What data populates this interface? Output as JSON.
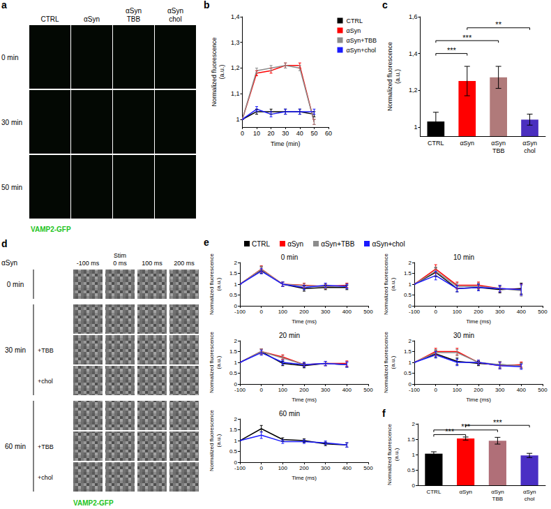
{
  "image_panels": [
    {
      "panel": "a",
      "columns": [
        "CTRL",
        "αSyn",
        "αSyn\nTBB",
        "αSyn\nchol"
      ],
      "rows": [
        "0 min",
        "30 min",
        "50 min"
      ],
      "caption": "VAMP2-GFP"
    },
    {
      "panel": "d",
      "corner": "αSyn",
      "columns": [
        "-100 ms",
        "Stim\n0 ms",
        "100 ms",
        "200 ms"
      ],
      "row_groups": [
        {
          "label": "0 min",
          "rows": [
            null
          ]
        },
        {
          "label": "30 min",
          "rows": [
            null,
            "+TBB",
            "+chol"
          ]
        },
        {
          "label": "60 min",
          "rows": [
            null,
            "+TBB",
            "+chol"
          ]
        }
      ],
      "caption": "VAMP2-GFP"
    }
  ],
  "e_legend": {
    "panel": "e",
    "series": [
      {
        "name": "CTRL",
        "color": "#000000"
      },
      {
        "name": "αSyn",
        "color": "#ff0000"
      },
      {
        "name": "αSyn+TBB",
        "color": "#8c8c8c"
      },
      {
        "name": "αSyn+chol",
        "color": "#1a1aff"
      }
    ]
  },
  "chart_data": [
    {
      "panel": "b",
      "type": "line",
      "xlabel": "Time (min)",
      "ylabel": "Normalized fluorescence\n(a.u.)",
      "legend": "right",
      "x": [
        0,
        10,
        20,
        30,
        40,
        50
      ],
      "xlim": [
        0,
        60
      ],
      "xticks": [
        0,
        10,
        20,
        30,
        40,
        50,
        60
      ],
      "ylim": [
        0.97,
        1.4
      ],
      "yticks": [
        1,
        {
          "value": 1.1,
          "label": "1,1"
        },
        {
          "value": 1.2,
          "label": "1,2"
        },
        {
          "value": 1.3,
          "label": "1,3"
        },
        {
          "value": 1.4,
          "label": "1,4"
        }
      ],
      "series": [
        {
          "name": "CTRL",
          "color": "#000000",
          "values": [
            1,
            1.03,
            1.03,
            1.03,
            1.03,
            1.02
          ],
          "errors": [
            0,
            0.01,
            0.01,
            0.01,
            0.01,
            0.01
          ]
        },
        {
          "name": "αSyn",
          "color": "#ff0000",
          "values": [
            1,
            1.18,
            1.19,
            1.21,
            1.21,
            0.99
          ],
          "errors": [
            0,
            0.01,
            0.01,
            0.01,
            0.01,
            0.01
          ]
        },
        {
          "name": "αSyn+TBB",
          "color": "#8c8c8c",
          "values": [
            1,
            1.19,
            1.2,
            1.21,
            1.2,
            0.99
          ],
          "errors": [
            0,
            0.01,
            0.01,
            0.01,
            0.01,
            0.01
          ]
        },
        {
          "name": "αSyn+chol",
          "color": "#1a1aff",
          "values": [
            1,
            1.04,
            1.02,
            1.03,
            1.03,
            1.03
          ],
          "errors": [
            0,
            0.01,
            0.01,
            0.01,
            0.01,
            0.01
          ]
        }
      ]
    },
    {
      "panel": "c",
      "type": "bar",
      "ylabel": "Normalized fluorescence\n(a.u.)",
      "categories": [
        "CTRL",
        "αSyn",
        "αSyn\nTBB",
        "αSyn\nchol"
      ],
      "values": [
        1.03,
        1.25,
        1.27,
        1.04
      ],
      "errors": [
        0.05,
        0.08,
        0.06,
        0.03
      ],
      "colors": [
        "#000000",
        "#ff0000",
        "#b07a7a",
        "#4b2fbf"
      ],
      "ylim": [
        0.95,
        1.6
      ],
      "yticks": [
        1,
        {
          "value": 1.2,
          "label": "1,2"
        },
        {
          "value": 1.4,
          "label": "1,4"
        },
        {
          "value": 1.6,
          "label": "1,6"
        }
      ],
      "significance": [
        {
          "from": 0,
          "to": 1,
          "y": 1.4,
          "label": "***"
        },
        {
          "from": 0,
          "to": 2,
          "y": 1.47,
          "label": "***"
        },
        {
          "from": 1,
          "to": 3,
          "y": 1.54,
          "label": "**"
        }
      ]
    },
    {
      "type": "line",
      "title": "0 min",
      "xlabel": "Time (ms)",
      "ylabel": "Normalized fluorescence\n(a.u.)",
      "x": [
        -100,
        0,
        100,
        200,
        300,
        400
      ],
      "xlim": [
        -100,
        500
      ],
      "xticks": [
        -100,
        0,
        100,
        200,
        300,
        400,
        500
      ],
      "ylim": [
        0,
        2
      ],
      "yticks": [
        0,
        0.5,
        1,
        1.5,
        2
      ],
      "series": [
        {
          "name": "CTRL",
          "color": "#000000",
          "values": [
            1,
            1.65,
            1.0,
            0.8,
            0.85,
            0.85
          ],
          "errors": [
            0,
            0.15,
            0.1,
            0.12,
            0.1,
            0.1
          ]
        },
        {
          "name": "αSyn",
          "color": "#ff0000",
          "values": [
            1,
            1.7,
            1.0,
            0.95,
            0.9,
            0.95
          ],
          "errors": [
            0,
            0.15,
            0.1,
            0.1,
            0.1,
            0.1
          ]
        },
        {
          "name": "αSyn+TBB",
          "color": "#8c8c8c",
          "values": [
            1,
            1.68,
            1.0,
            0.93,
            0.9,
            0.92
          ],
          "errors": [
            0,
            0.15,
            0.1,
            0.1,
            0.1,
            0.1
          ]
        },
        {
          "name": "αSyn+chol",
          "color": "#1a1aff",
          "values": [
            1,
            1.6,
            1.0,
            0.85,
            0.95,
            0.9
          ],
          "errors": [
            0,
            0.12,
            0.1,
            0.1,
            0.1,
            0.1
          ]
        }
      ]
    },
    {
      "type": "line",
      "title": "10 min",
      "xlabel": "Time (ms)",
      "ylabel": "Normalized fluorescence\n(a.u.)",
      "x": [
        -100,
        0,
        100,
        200,
        300,
        400
      ],
      "xlim": [
        -100,
        500
      ],
      "xticks": [
        -100,
        0,
        100,
        200,
        300,
        400,
        500
      ],
      "ylim": [
        0,
        2
      ],
      "yticks": [
        0,
        0.5,
        1,
        1.5,
        2
      ],
      "series": [
        {
          "name": "CTRL",
          "color": "#000000",
          "values": [
            1,
            1.55,
            0.8,
            0.85,
            0.75,
            0.8
          ],
          "errors": [
            0,
            0.2,
            0.15,
            0.15,
            0.15,
            0.25
          ]
        },
        {
          "name": "αSyn",
          "color": "#ff0000",
          "values": [
            1,
            1.7,
            0.95,
            0.95,
            0.8,
            0.75
          ],
          "errors": [
            0,
            0.2,
            0.15,
            0.15,
            0.15,
            0.25
          ]
        },
        {
          "name": "αSyn+TBB",
          "color": "#8c8c8c",
          "values": [
            1,
            1.6,
            0.9,
            0.9,
            0.8,
            0.7
          ],
          "errors": [
            0,
            0.2,
            0.15,
            0.15,
            0.15,
            0.25
          ]
        },
        {
          "name": "αSyn+chol",
          "color": "#1a1aff",
          "values": [
            1,
            1.4,
            0.8,
            0.85,
            0.8,
            0.75
          ],
          "errors": [
            0,
            0.2,
            0.15,
            0.15,
            0.15,
            0.25
          ]
        }
      ]
    },
    {
      "type": "line",
      "title": "20 min",
      "xlabel": "Time (ms)",
      "ylabel": "Normalized fluorescence\n(a.u.)",
      "x": [
        -100,
        0,
        100,
        200,
        300,
        400
      ],
      "xlim": [
        -100,
        500
      ],
      "xticks": [
        -100,
        0,
        100,
        200,
        300,
        400,
        500
      ],
      "ylim": [
        0,
        2
      ],
      "yticks": [
        0,
        0.5,
        1,
        1.5,
        2
      ],
      "series": [
        {
          "name": "CTRL",
          "color": "#000000",
          "values": [
            1,
            1.5,
            0.95,
            0.85,
            0.95,
            0.9
          ],
          "errors": [
            0,
            0.12,
            0.1,
            0.1,
            0.1,
            0.12
          ]
        },
        {
          "name": "αSyn",
          "color": "#ff0000",
          "values": [
            1,
            1.5,
            1.25,
            0.9,
            0.95,
            0.95
          ],
          "errors": [
            0,
            0.12,
            0.1,
            0.1,
            0.1,
            0.12
          ]
        },
        {
          "name": "αSyn+TBB",
          "color": "#8c8c8c",
          "values": [
            1,
            1.5,
            1.2,
            0.9,
            0.95,
            0.9
          ],
          "errors": [
            0,
            0.12,
            0.1,
            0.1,
            0.1,
            0.12
          ]
        },
        {
          "name": "αSyn+chol",
          "color": "#1a1aff",
          "values": [
            1,
            1.45,
            1.0,
            0.9,
            0.95,
            0.9
          ],
          "errors": [
            0,
            0.12,
            0.1,
            0.1,
            0.1,
            0.12
          ]
        }
      ]
    },
    {
      "type": "line",
      "title": "30 min",
      "xlabel": "Time (ms)",
      "ylabel": "Normalized fluorescence\n(a.u.)",
      "x": [
        -100,
        0,
        100,
        200,
        300,
        400
      ],
      "xlim": [
        -100,
        500
      ],
      "xticks": [
        -100,
        0,
        100,
        200,
        300,
        400,
        500
      ],
      "ylim": [
        0,
        2
      ],
      "yticks": [
        0,
        0.5,
        1,
        1.5,
        2
      ],
      "series": [
        {
          "name": "CTRL",
          "color": "#000000",
          "values": [
            1,
            1.4,
            1.05,
            0.95,
            0.9,
            0.85
          ],
          "errors": [
            0,
            0.15,
            0.15,
            0.1,
            0.15,
            0.12
          ]
        },
        {
          "name": "αSyn",
          "color": "#ff0000",
          "values": [
            1,
            1.5,
            1.5,
            1.0,
            0.85,
            0.9
          ],
          "errors": [
            0,
            0.15,
            0.15,
            0.1,
            0.15,
            0.12
          ]
        },
        {
          "name": "αSyn+TBB",
          "color": "#8c8c8c",
          "values": [
            1,
            1.45,
            1.45,
            1.0,
            0.9,
            0.85
          ],
          "errors": [
            0,
            0.15,
            0.15,
            0.1,
            0.15,
            0.12
          ]
        },
        {
          "name": "αSyn+chol",
          "color": "#1a1aff",
          "values": [
            1,
            1.35,
            1.0,
            1.0,
            0.85,
            0.8
          ],
          "errors": [
            0,
            0.15,
            0.15,
            0.1,
            0.15,
            0.12
          ]
        }
      ]
    },
    {
      "type": "line",
      "title": "60 min",
      "xlabel": "Time (ms)",
      "ylabel": "Normalized fluorescence\n(a.u.)",
      "x": [
        -100,
        0,
        100,
        200,
        300,
        400
      ],
      "xlim": [
        -100,
        500
      ],
      "xticks": [
        -100,
        0,
        100,
        200,
        300,
        400,
        500
      ],
      "ylim": [
        0,
        2
      ],
      "yticks": [
        0,
        0.5,
        1,
        1.5,
        2
      ],
      "series": [
        {
          "name": "CTRL",
          "color": "#000000",
          "values": [
            1,
            1.55,
            1.05,
            1.0,
            0.85,
            0.8
          ],
          "errors": [
            0,
            0.15,
            0.08,
            0.08,
            0.08,
            0.1
          ]
        },
        {
          "name": "αSyn+chol",
          "color": "#1a1aff",
          "values": [
            1,
            1.25,
            0.95,
            0.95,
            0.9,
            0.8
          ],
          "errors": [
            0,
            0.15,
            0.08,
            0.08,
            0.08,
            0.1
          ]
        }
      ]
    },
    {
      "panel": "f",
      "type": "bar",
      "ylabel": "Normalized fluorescence\n(a.u.)",
      "categories": [
        "CTRL",
        "αSyn",
        "αSyn\nTBB",
        "αSyn\nchol"
      ],
      "values": [
        1.03,
        1.52,
        1.45,
        0.97
      ],
      "errors": [
        0.06,
        0.05,
        0.11,
        0.07
      ],
      "colors": [
        "#000000",
        "#ff0000",
        "#b06f78",
        "#4a2fc4"
      ],
      "ylim": [
        0,
        2
      ],
      "yticks": [
        0,
        0.5,
        1,
        1.5,
        2
      ],
      "significance": [
        {
          "from": 0,
          "to": 1,
          "y": 1.65,
          "label": "***"
        },
        {
          "from": 0,
          "to": 2,
          "y": 1.8,
          "label": "***"
        },
        {
          "from": 1,
          "to": 3,
          "y": 1.95,
          "label": "***"
        }
      ]
    }
  ]
}
